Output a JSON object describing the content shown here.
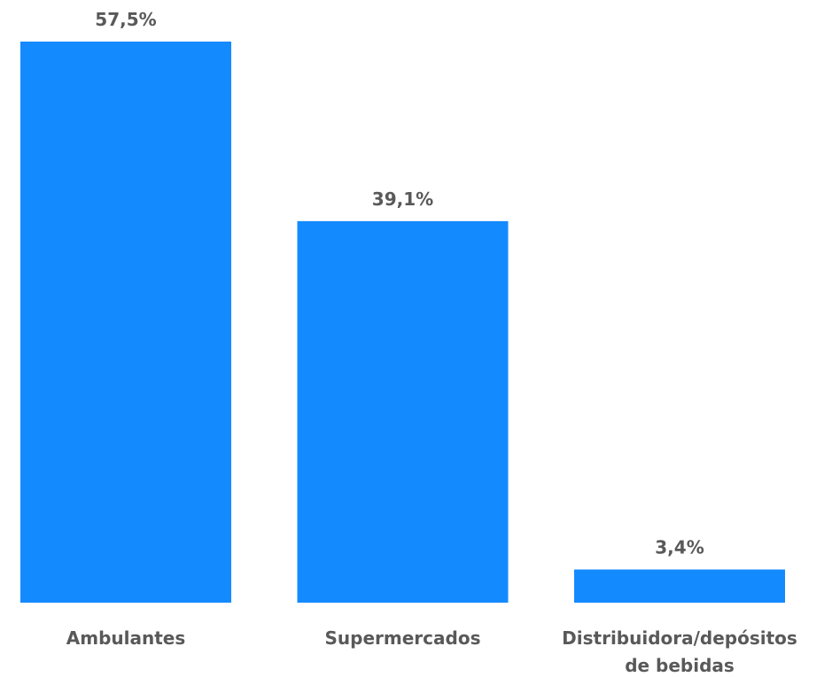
{
  "colors": {
    "bar": "#148AFF",
    "label": "#595959"
  },
  "chart_data": {
    "type": "bar",
    "title": "",
    "xlabel": "",
    "ylabel": "",
    "categories": [
      [
        "Ambulantes"
      ],
      [
        "Supermercados"
      ],
      [
        "Distribuidora/depósitos",
        "de bebidas"
      ]
    ],
    "values": [
      57.5,
      39.1,
      3.4
    ],
    "value_labels": [
      "57,5%",
      "39,1%",
      "3,4%"
    ],
    "ylim": [
      0,
      57.5
    ],
    "grid": false,
    "legend": "none"
  }
}
